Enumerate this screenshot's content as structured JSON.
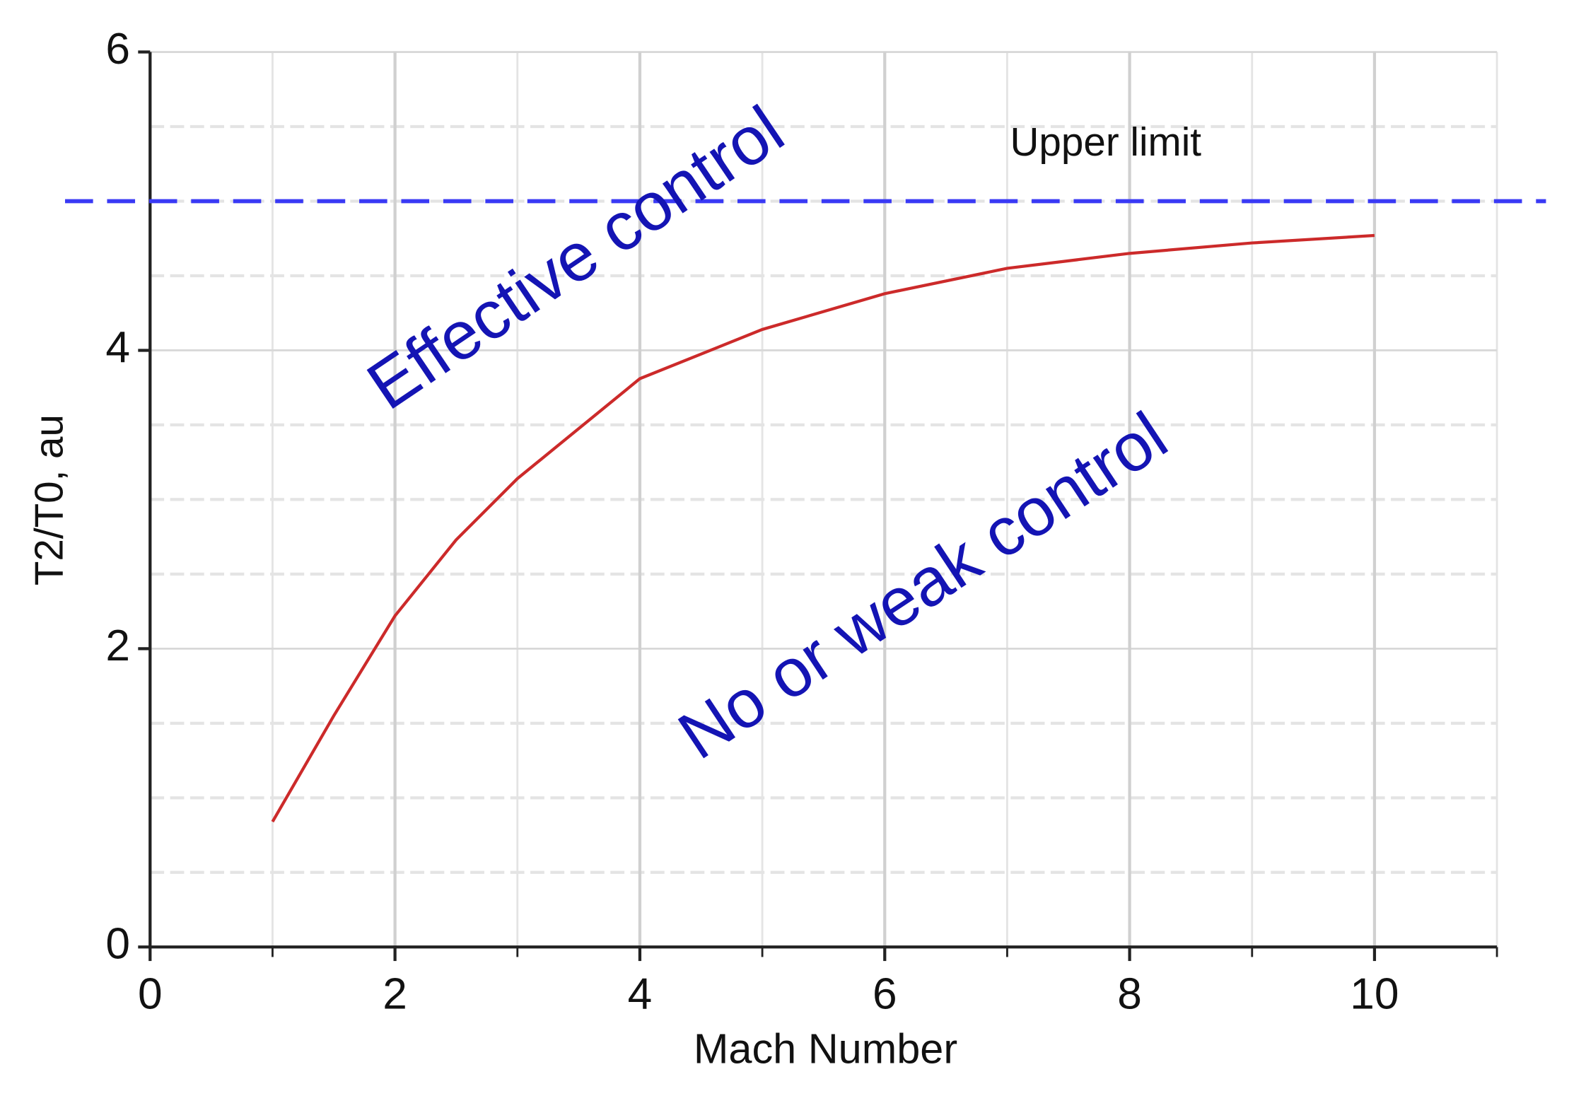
{
  "chart_data": {
    "type": "line",
    "x_label": "Mach Number",
    "y_label": "T2/T0, au",
    "x": [
      1,
      1.5,
      2,
      2.5,
      3,
      4,
      5,
      6,
      7,
      8,
      9,
      10
    ],
    "series": [
      {
        "name": "T2/T0",
        "color": "#cc2a2a",
        "values": [
          0.84,
          1.55,
          2.22,
          2.73,
          3.14,
          3.81,
          4.14,
          4.38,
          4.55,
          4.65,
          4.72,
          4.77
        ]
      }
    ],
    "xlim": [
      0,
      11
    ],
    "ylim": [
      0,
      6
    ],
    "xticks": [
      0,
      2,
      4,
      6,
      8,
      10
    ],
    "yticks": [
      0,
      2,
      4,
      6
    ],
    "x_minor_ticks": [
      1,
      3,
      5,
      7,
      9,
      11
    ],
    "y_minor_ticks": [
      0.5,
      1,
      1.5,
      2.5,
      3,
      3.5,
      4.5,
      5,
      5.5
    ],
    "grid": true,
    "reference_line": {
      "y": 5,
      "color": "#3a3af5",
      "label": "Upper limit"
    },
    "annotations": [
      {
        "text": "Effective control",
        "color": "#1414b4"
      },
      {
        "text": "No or weak control",
        "color": "#1414b4"
      }
    ]
  }
}
